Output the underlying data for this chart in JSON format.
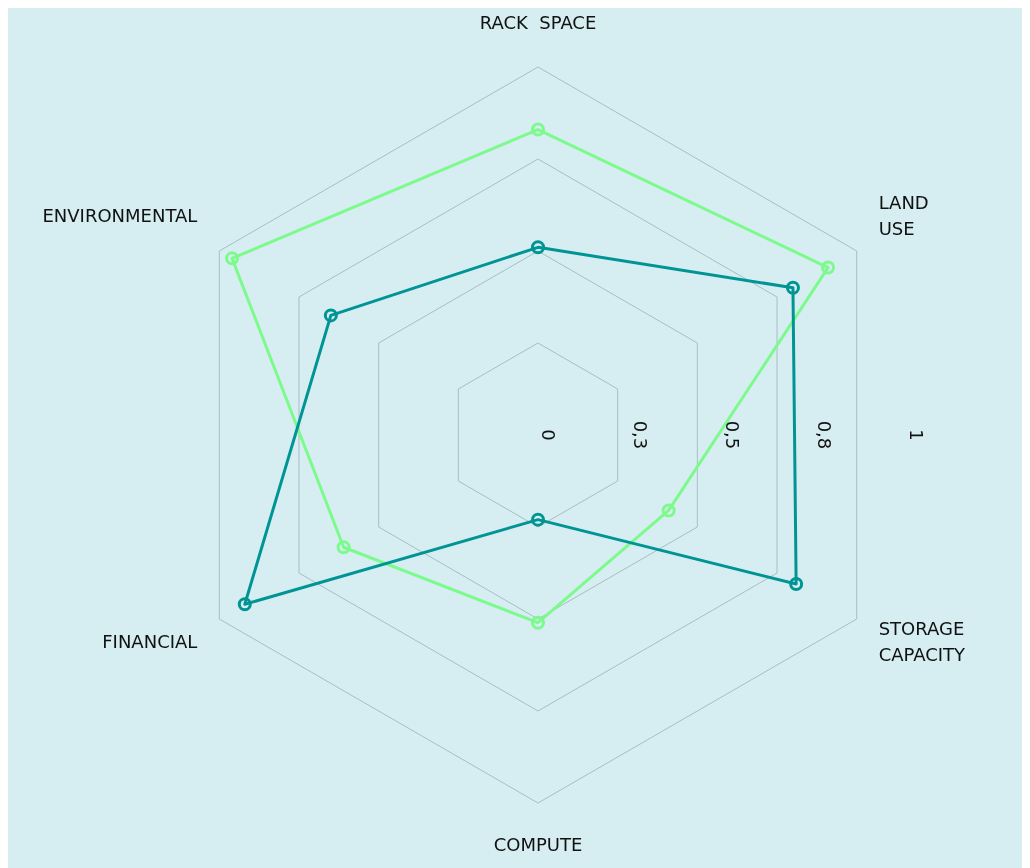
{
  "chart_data": {
    "type": "radar",
    "categories": [
      "RACK  SPACE",
      "LAND USE",
      "STORAGE CAPACITY",
      "COMPUTE",
      "FINANCIAL",
      "ENVIRONMENTAL"
    ],
    "series": [
      {
        "color": "#7dfa8c",
        "values": [
          0.83,
          0.91,
          0.41,
          0.51,
          0.61,
          0.96
        ]
      },
      {
        "color": "#009494",
        "values": [
          0.51,
          0.8,
          0.81,
          0.23,
          0.92,
          0.65
        ]
      }
    ],
    "ylim": [
      0,
      1
    ],
    "yticks": [
      0,
      {
        "value": 0.25,
        "label": "0,3"
      },
      {
        "value": 0.5,
        "label": "0,5"
      },
      {
        "value": 0.75,
        "label": "0,8"
      },
      1
    ],
    "grid": true,
    "marker": "circle",
    "line_style": "solid"
  }
}
